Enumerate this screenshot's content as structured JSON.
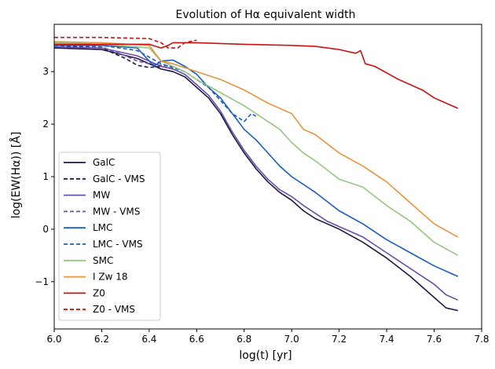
{
  "chart_data": {
    "type": "line",
    "title": "Evolution of Hα equivalent width",
    "xlabel": "log(t) [yr]",
    "ylabel": "log(EW(Hα)) [Å]",
    "xlim": [
      6.0,
      7.8
    ],
    "ylim": [
      -1.9,
      3.9
    ],
    "xticks": [
      6.0,
      6.2,
      6.4,
      6.6,
      6.8,
      7.0,
      7.2,
      7.4,
      7.6,
      7.8
    ],
    "xtick_labels": [
      "6.0",
      "6.2",
      "6.4",
      "6.6",
      "6.8",
      "7.0",
      "7.2",
      "7.4",
      "7.6",
      "7.8"
    ],
    "yticks": [
      -1,
      0,
      1,
      2,
      3
    ],
    "ytick_labels": [
      "−1",
      "0",
      "1",
      "2",
      "3"
    ],
    "grid": false,
    "legend_position": "lower-left",
    "series": [
      {
        "name": "GalC",
        "color": "#1f1846",
        "dash": "solid",
        "x": [
          6.0,
          6.2,
          6.35,
          6.45,
          6.5,
          6.55,
          6.6,
          6.65,
          6.7,
          6.75,
          6.8,
          6.85,
          6.9,
          6.95,
          7.0,
          7.05,
          7.1,
          7.15,
          7.2,
          7.3,
          7.4,
          7.5,
          7.55,
          7.6,
          7.65,
          7.7
        ],
        "y": [
          3.45,
          3.42,
          3.25,
          3.05,
          3.0,
          2.9,
          2.7,
          2.5,
          2.2,
          1.8,
          1.45,
          1.15,
          0.9,
          0.7,
          0.55,
          0.35,
          0.2,
          0.1,
          0.0,
          -0.25,
          -0.55,
          -0.9,
          -1.1,
          -1.3,
          -1.5,
          -1.55
        ]
      },
      {
        "name": "GalC - VMS",
        "color": "#1f1846",
        "dash": "dashed",
        "x": [
          6.0,
          6.2,
          6.3,
          6.35,
          6.4,
          6.45,
          6.5
        ],
        "y": [
          3.5,
          3.45,
          3.25,
          3.12,
          3.08,
          3.1,
          3.05
        ]
      },
      {
        "name": "MW",
        "color": "#6a50a8",
        "dash": "solid",
        "x": [
          6.0,
          6.2,
          6.35,
          6.45,
          6.5,
          6.55,
          6.6,
          6.65,
          6.7,
          6.75,
          6.8,
          6.85,
          6.9,
          6.95,
          7.0,
          7.05,
          7.1,
          7.15,
          7.2,
          7.3,
          7.4,
          7.5,
          7.6,
          7.65,
          7.7
        ],
        "y": [
          3.47,
          3.45,
          3.3,
          3.1,
          3.05,
          2.95,
          2.75,
          2.55,
          2.25,
          1.85,
          1.5,
          1.2,
          0.95,
          0.75,
          0.62,
          0.45,
          0.3,
          0.15,
          0.05,
          -0.15,
          -0.45,
          -0.75,
          -1.05,
          -1.25,
          -1.35
        ]
      },
      {
        "name": "MW - VMS",
        "color": "#6a50a8",
        "dash": "dashed",
        "x": [
          6.0,
          6.2,
          6.3,
          6.35,
          6.4,
          6.45,
          6.5
        ],
        "y": [
          3.52,
          3.47,
          3.3,
          3.2,
          3.15,
          3.12,
          3.1
        ]
      },
      {
        "name": "LMC",
        "color": "#1a5cc6",
        "dash": "solid",
        "x": [
          6.0,
          6.2,
          6.35,
          6.42,
          6.45,
          6.5,
          6.55,
          6.6,
          6.65,
          6.7,
          6.75,
          6.8,
          6.85,
          6.9,
          6.95,
          7.0,
          7.05,
          7.1,
          7.2,
          7.3,
          7.4,
          7.5,
          7.6,
          7.7
        ],
        "y": [
          3.5,
          3.5,
          3.45,
          3.1,
          3.2,
          3.22,
          3.1,
          2.95,
          2.7,
          2.5,
          2.2,
          1.9,
          1.7,
          1.45,
          1.2,
          1.0,
          0.85,
          0.7,
          0.35,
          0.1,
          -0.2,
          -0.45,
          -0.7,
          -0.9
        ]
      },
      {
        "name": "LMC - VMS",
        "color": "#1a5cc6",
        "dash": "dashed",
        "x": [
          6.0,
          6.2,
          6.35,
          6.45,
          6.55,
          6.65,
          6.7,
          6.75,
          6.8,
          6.83,
          6.85
        ],
        "y": [
          3.52,
          3.5,
          3.4,
          3.15,
          3.0,
          2.7,
          2.45,
          2.2,
          2.05,
          2.2,
          2.15
        ]
      },
      {
        "name": "SMC",
        "color": "#96c683",
        "dash": "solid",
        "x": [
          6.0,
          6.2,
          6.4,
          6.45,
          6.5,
          6.55,
          6.6,
          6.7,
          6.8,
          6.9,
          6.95,
          7.0,
          7.05,
          7.1,
          7.2,
          7.3,
          7.4,
          7.5,
          7.6,
          7.7
        ],
        "y": [
          3.55,
          3.52,
          3.45,
          3.2,
          3.1,
          3.0,
          2.85,
          2.6,
          2.35,
          2.05,
          1.9,
          1.65,
          1.45,
          1.3,
          0.95,
          0.8,
          0.45,
          0.15,
          -0.25,
          -0.5
        ]
      },
      {
        "name": "I Zw 18",
        "color": "#e8933a",
        "dash": "solid",
        "x": [
          6.0,
          6.2,
          6.4,
          6.45,
          6.5,
          6.6,
          6.7,
          6.8,
          6.9,
          7.0,
          7.05,
          7.1,
          7.2,
          7.3,
          7.4,
          7.5,
          7.6,
          7.7
        ],
        "y": [
          3.57,
          3.55,
          3.5,
          3.2,
          3.15,
          3.0,
          2.85,
          2.65,
          2.4,
          2.2,
          1.9,
          1.8,
          1.45,
          1.2,
          0.9,
          0.5,
          0.1,
          -0.15
        ]
      },
      {
        "name": "Z0",
        "color": "#cc1111",
        "dash": "solid",
        "x": [
          6.0,
          6.2,
          6.4,
          6.45,
          6.48,
          6.5,
          6.6,
          6.8,
          7.0,
          7.1,
          7.2,
          7.27,
          7.29,
          7.31,
          7.35,
          7.45,
          7.55,
          7.6,
          7.7
        ],
        "y": [
          3.52,
          3.52,
          3.52,
          3.45,
          3.5,
          3.55,
          3.55,
          3.52,
          3.5,
          3.48,
          3.42,
          3.35,
          3.4,
          3.15,
          3.1,
          2.85,
          2.65,
          2.5,
          2.3
        ]
      },
      {
        "name": "Z0 - VMS",
        "color": "#cc1111",
        "dash": "dashed",
        "x": [
          6.0,
          6.2,
          6.4,
          6.45,
          6.48,
          6.52,
          6.55,
          6.6
        ],
        "y": [
          3.65,
          3.65,
          3.63,
          3.55,
          3.45,
          3.45,
          3.55,
          3.6
        ]
      }
    ]
  }
}
